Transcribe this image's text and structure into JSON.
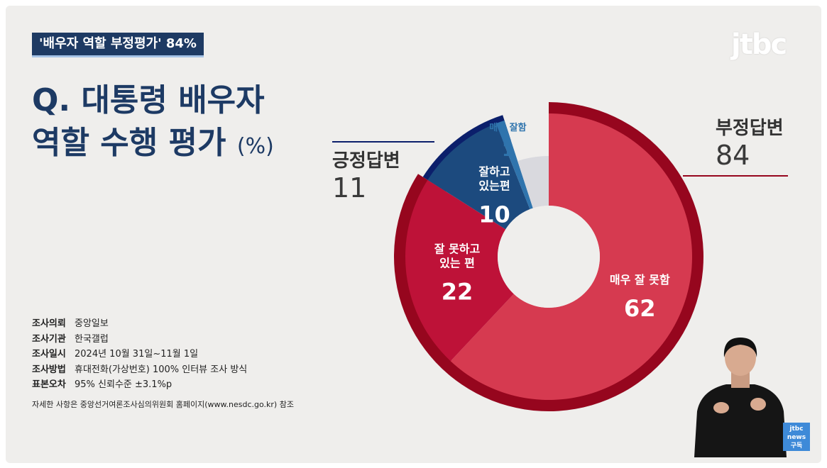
{
  "headline": "'배우자 역할 부정평가' 84%",
  "logo_text": "jtbc",
  "question": {
    "line1": "Q. 대통령 배우자",
    "line2": "역할 수행 평가",
    "unit": "(%)"
  },
  "groups": {
    "positive": {
      "label": "긍정답변",
      "value": "11"
    },
    "negative": {
      "label": "부정답변",
      "value": "84"
    }
  },
  "chart_data": {
    "type": "pie",
    "categories": [
      "매우 잘 못함",
      "잘 못하고 있는 편",
      "잘하고 있는편",
      "매우 잘함"
    ],
    "values": [
      62,
      22,
      10,
      1
    ],
    "slice_labels": [
      {
        "lines": [
          "매우 잘 못함"
        ],
        "value": "62"
      },
      {
        "lines": [
          "잘 못하고",
          "있는 편"
        ],
        "value": "22"
      },
      {
        "lines": [
          "잘하고",
          "있는편"
        ],
        "value": "10"
      },
      {
        "lines": [
          "매우 잘함"
        ],
        "value": "1"
      }
    ],
    "colors": [
      "#d63a50",
      "#be1238",
      "#1c4a7e",
      "#2f74ad"
    ],
    "ring_colors": {
      "negative": "#96061e",
      "positive": "#0b1f6b"
    },
    "remainder_color": "#d9d9de"
  },
  "survey_info": [
    {
      "key": "조사의뢰",
      "value": "중앙일보"
    },
    {
      "key": "조사기관",
      "value": "한국갤럽"
    },
    {
      "key": "조사일시",
      "value": "2024년 10월 31일~11월 1일"
    },
    {
      "key": "조사방법",
      "value": "휴대전화(가상번호) 100% 인터뷰 조사 방식"
    },
    {
      "key": "표본오차",
      "value": "95% 신뢰수준 ±3.1%p"
    }
  ],
  "note": "자세한 사항은 중앙선거여론조사심의위원회 홈페이지(www.nesdc.go.kr) 참조",
  "badge": {
    "line1": "jtbc",
    "line2": "news",
    "line3": "구독"
  }
}
